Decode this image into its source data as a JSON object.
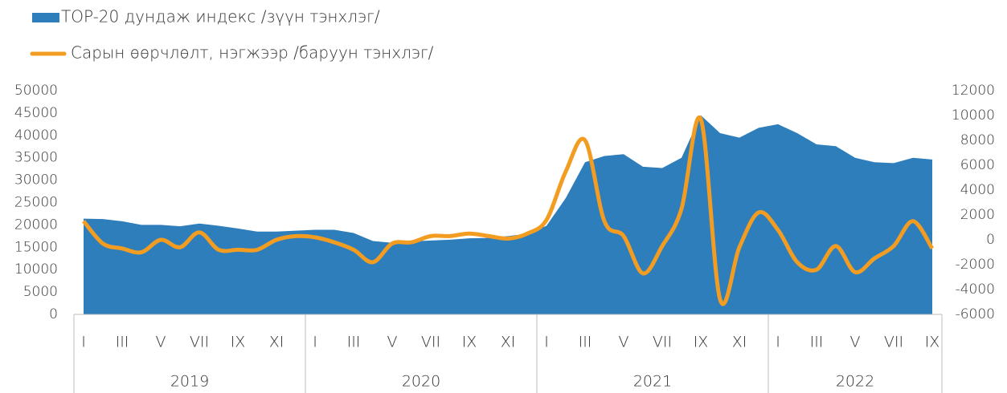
{
  "chart_data": {
    "type": "combo",
    "category_groups": [
      {
        "label": "2019",
        "categories": [
          "I",
          null,
          "III",
          null,
          "V",
          null,
          "VII",
          null,
          "IX",
          null,
          "XI",
          null
        ]
      },
      {
        "label": "2020",
        "categories": [
          "I",
          null,
          "III",
          null,
          "V",
          null,
          "VII",
          null,
          "IX",
          null,
          "XI",
          null
        ]
      },
      {
        "label": "2021",
        "categories": [
          "I",
          null,
          "III",
          null,
          "V",
          null,
          "VII",
          null,
          "IX",
          null,
          "XI",
          null
        ]
      },
      {
        "label": "2022",
        "categories": [
          "I",
          null,
          "III",
          null,
          "V",
          null,
          "VII",
          null,
          "IX"
        ]
      }
    ],
    "series": [
      {
        "name": "TOP-20 дундаж индекс /зүүн тэнхлэг/",
        "type": "area",
        "color": "#2e7ebc",
        "axis": "y",
        "values": [
          21400,
          21300,
          20800,
          20000,
          20000,
          19700,
          20300,
          19800,
          19200,
          18500,
          18500,
          18700,
          18900,
          18900,
          18200,
          16400,
          16000,
          16300,
          16500,
          16700,
          17000,
          17100,
          17500,
          18000,
          19800,
          26000,
          34000,
          35400,
          35800,
          33000,
          32700,
          35000,
          44500,
          40500,
          39500,
          41700,
          42500,
          40500,
          38000,
          37600,
          35000,
          34000,
          33800,
          35000,
          34600
        ]
      },
      {
        "name": "Сарын өөрчлөлт, нэгжээр /баруун тэнхлэг/",
        "type": "line",
        "color": "#f29d22",
        "axis": "y2",
        "values": [
          1500,
          -300,
          -700,
          -1000,
          0,
          -600,
          600,
          -800,
          -800,
          -800,
          0,
          300,
          200,
          -200,
          -800,
          -1800,
          -300,
          -200,
          300,
          300,
          500,
          300,
          100,
          500,
          1600,
          5500,
          8000,
          1500,
          300,
          -2700,
          -500,
          2500,
          9700,
          -4800,
          -600,
          2200,
          800,
          -1800,
          -2400,
          -500,
          -2600,
          -1500,
          -500,
          1500,
          -700
        ]
      }
    ],
    "ylim": [
      0,
      50000
    ],
    "yticks": [
      0,
      5000,
      10000,
      15000,
      20000,
      25000,
      30000,
      35000,
      40000,
      45000,
      50000
    ],
    "y2lim": [
      -6000,
      12000
    ],
    "y2ticks": [
      -6000,
      -4000,
      -2000,
      0,
      2000,
      4000,
      6000,
      8000,
      10000,
      12000
    ],
    "grid": false,
    "legend": "top-left"
  }
}
